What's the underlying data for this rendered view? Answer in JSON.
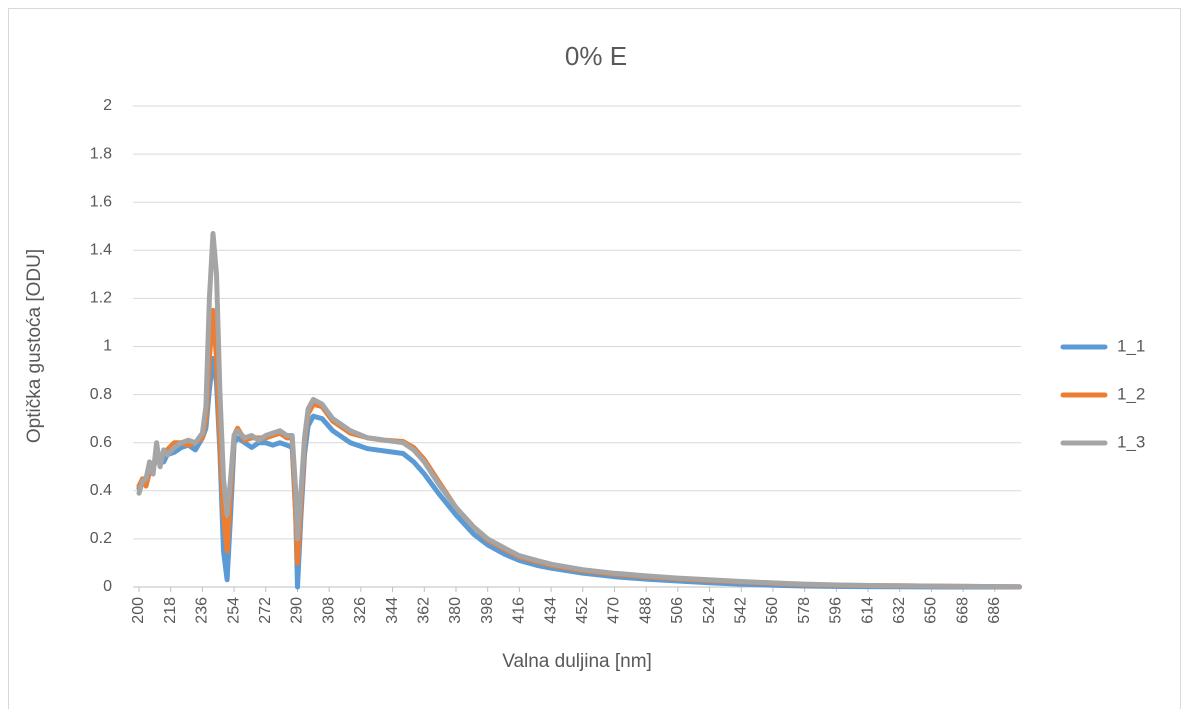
{
  "chart_data": {
    "type": "line",
    "title": "0% E",
    "x_label": "Valna duljina [nm]",
    "y_label": "Optička gustoća [ODU]",
    "x": [
      200,
      202,
      204,
      206,
      208,
      210,
      212,
      214,
      216,
      220,
      224,
      228,
      232,
      236,
      238,
      240,
      242,
      244,
      246,
      248,
      250,
      252,
      254,
      256,
      260,
      264,
      268,
      272,
      276,
      280,
      284,
      287,
      289,
      290,
      292,
      294,
      296,
      299,
      304,
      310,
      320,
      330,
      340,
      350,
      356,
      362,
      370,
      380,
      390,
      398,
      408,
      416,
      426,
      434,
      452,
      470,
      488,
      506,
      524,
      542,
      560,
      578,
      600,
      630,
      660,
      700
    ],
    "series": [
      {
        "name": "1_1",
        "color": "#5b9bd5",
        "values": [
          0.41,
          0.44,
          0.43,
          0.49,
          0.5,
          0.53,
          0.53,
          0.52,
          0.55,
          0.56,
          0.58,
          0.59,
          0.57,
          0.62,
          0.66,
          0.82,
          0.95,
          0.85,
          0.55,
          0.15,
          0.03,
          0.3,
          0.6,
          0.62,
          0.6,
          0.58,
          0.6,
          0.6,
          0.59,
          0.6,
          0.59,
          0.58,
          0.3,
          0.0,
          0.3,
          0.55,
          0.67,
          0.71,
          0.7,
          0.65,
          0.6,
          0.575,
          0.565,
          0.555,
          0.52,
          0.47,
          0.39,
          0.3,
          0.22,
          0.175,
          0.135,
          0.11,
          0.09,
          0.078,
          0.058,
          0.043,
          0.033,
          0.025,
          0.018,
          0.012,
          0.007,
          0.004,
          0.002,
          0.001,
          0.0,
          0.0
        ]
      },
      {
        "name": "1_2",
        "color": "#ed7d31",
        "values": [
          0.42,
          0.45,
          0.42,
          0.48,
          0.5,
          0.55,
          0.54,
          0.55,
          0.57,
          0.6,
          0.6,
          0.59,
          0.6,
          0.62,
          0.7,
          0.95,
          1.15,
          0.95,
          0.6,
          0.3,
          0.15,
          0.4,
          0.63,
          0.66,
          0.61,
          0.62,
          0.62,
          0.62,
          0.63,
          0.64,
          0.62,
          0.62,
          0.3,
          0.1,
          0.35,
          0.6,
          0.72,
          0.76,
          0.75,
          0.69,
          0.64,
          0.62,
          0.61,
          0.605,
          0.58,
          0.53,
          0.44,
          0.33,
          0.25,
          0.195,
          0.155,
          0.125,
          0.105,
          0.09,
          0.068,
          0.053,
          0.043,
          0.034,
          0.027,
          0.021,
          0.015,
          0.01,
          0.007,
          0.005,
          0.003,
          0.001
        ]
      },
      {
        "name": "1_3",
        "color": "#a5a5a5",
        "values": [
          0.39,
          0.44,
          0.45,
          0.52,
          0.47,
          0.6,
          0.5,
          0.57,
          0.55,
          0.58,
          0.6,
          0.61,
          0.6,
          0.64,
          0.75,
          1.2,
          1.47,
          1.3,
          0.8,
          0.45,
          0.3,
          0.45,
          0.63,
          0.65,
          0.62,
          0.63,
          0.61,
          0.63,
          0.64,
          0.65,
          0.63,
          0.63,
          0.4,
          0.2,
          0.4,
          0.62,
          0.74,
          0.78,
          0.76,
          0.7,
          0.65,
          0.62,
          0.61,
          0.6,
          0.57,
          0.52,
          0.43,
          0.33,
          0.25,
          0.2,
          0.16,
          0.13,
          0.11,
          0.095,
          0.072,
          0.057,
          0.046,
          0.037,
          0.03,
          0.023,
          0.017,
          0.012,
          0.008,
          0.005,
          0.003,
          0.001
        ]
      }
    ],
    "xlim": [
      200,
      700
    ],
    "xticks": [
      200,
      218,
      236,
      254,
      272,
      290,
      308,
      326,
      344,
      362,
      380,
      398,
      416,
      434,
      452,
      470,
      488,
      506,
      524,
      542,
      560,
      578,
      596,
      614,
      632,
      650,
      668,
      686
    ],
    "ylim": [
      0,
      2
    ],
    "yticks": [
      0,
      0.2,
      0.4,
      0.6,
      0.8,
      1,
      1.2,
      1.4,
      1.6,
      1.8,
      2
    ],
    "grid": true,
    "legend": "right"
  }
}
